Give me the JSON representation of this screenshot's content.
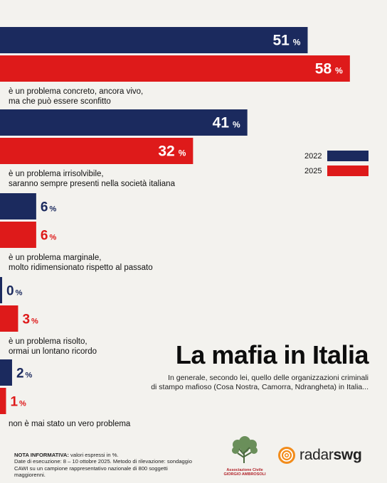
{
  "chart_data": {
    "type": "bar",
    "orientation": "horizontal",
    "categories": [
      [
        "è un problema concreto, ancora vivo,",
        "ma che può essere sconfitto"
      ],
      [
        "è un problema irrisolvibile,",
        "saranno sempre presenti nella società italiana"
      ],
      [
        "è un problema marginale,",
        "molto ridimensionato rispetto al passato"
      ],
      [
        "è un problema risolto,",
        "ormai un lontano ricordo"
      ],
      [
        "non è mai stato un vero problema"
      ]
    ],
    "series": [
      {
        "name": "2022",
        "color": "#1b2a5e",
        "values": [
          51,
          41,
          6,
          0,
          2
        ]
      },
      {
        "name": "2025",
        "color": "#de1a1a",
        "values": [
          58,
          32,
          6,
          3,
          1
        ]
      }
    ],
    "unit": "%",
    "xlim": [
      0,
      100
    ],
    "grid": false,
    "legend": "right"
  },
  "title": "La mafia in Italia",
  "subtitle_lines": [
    "In generale, secondo lei, quello delle organizzazioni criminali",
    "di stampo mafioso (Cosa Nostra, Camorra, Ndrangheta) in Italia..."
  ],
  "note": {
    "label": "NOTA INFORMATIVA:",
    "line1": "valori espressi in %.",
    "line2": "Date di esecuzione: 8 – 10 ottobre 2025. Metodo di rilevazione: sondaggio",
    "line3": "CAWI su un campione rappresentativo nazionale di 800 soggetti maggiorenni."
  },
  "logos": {
    "ambrosoli_line1": "Associazione Civile",
    "ambrosoli_line2": "GIORGIO AMBROSOLI",
    "radar": "radar",
    "swg": "swg"
  }
}
